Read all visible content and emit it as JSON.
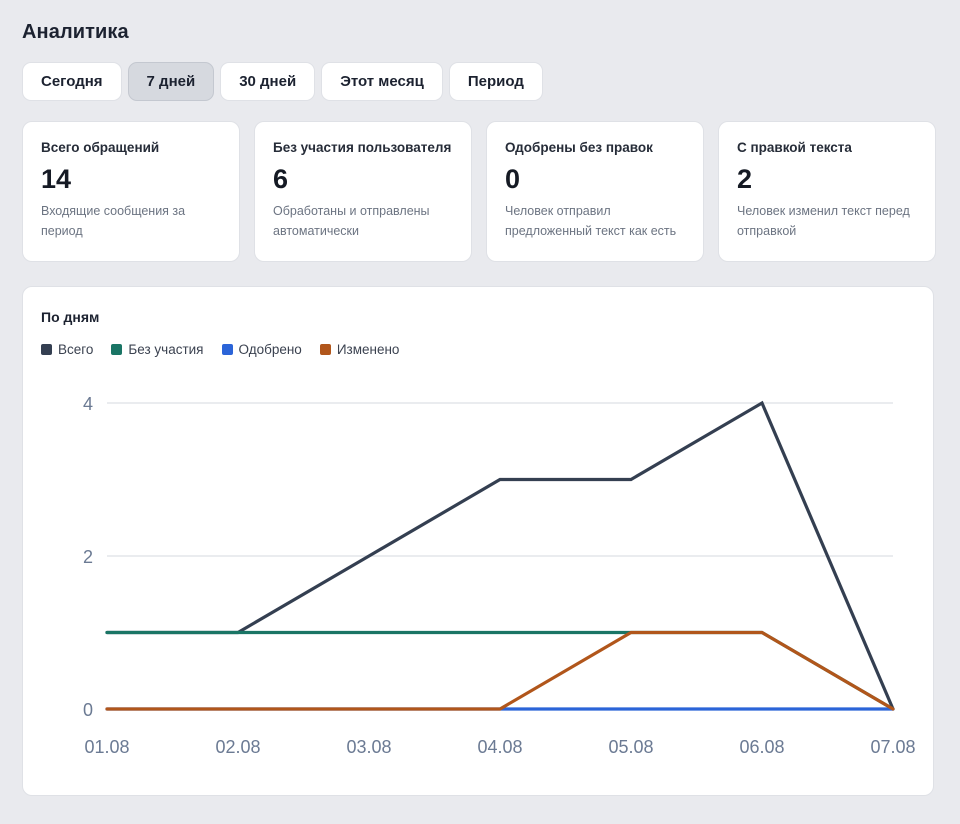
{
  "page": {
    "title": "Аналитика"
  },
  "tabs": [
    {
      "label": "Сегодня",
      "active": false
    },
    {
      "label": "7 дней",
      "active": true
    },
    {
      "label": "30 дней",
      "active": false
    },
    {
      "label": "Этот месяц",
      "active": false
    },
    {
      "label": "Период",
      "active": false
    }
  ],
  "cards": [
    {
      "label": "Всего обращений",
      "value": "14",
      "desc": "Входящие сообщения за период"
    },
    {
      "label": "Без участия пользователя",
      "value": "6",
      "desc": "Обработаны и отправлены автоматически"
    },
    {
      "label": "Одобрены без правок",
      "value": "0",
      "desc": "Человек отправил предложенный текст как есть"
    },
    {
      "label": "С правкой текста",
      "value": "2",
      "desc": "Человек изменил текст перед отправкой"
    }
  ],
  "chart_panel": {
    "title": "По дням"
  },
  "chart_data": {
    "type": "line",
    "categories": [
      "01.08",
      "02.08",
      "03.08",
      "04.08",
      "05.08",
      "06.08",
      "07.08"
    ],
    "ylim": [
      0,
      4
    ],
    "yticks": [
      0,
      2,
      4
    ],
    "grid": true,
    "legend": "top-left",
    "series": [
      {
        "name": "Всего",
        "color": "#343f51",
        "values": [
          1,
          1,
          2,
          3,
          3,
          4,
          0
        ]
      },
      {
        "name": "Без участия",
        "color": "#1a7565",
        "values": [
          1,
          1,
          1,
          1,
          1,
          1,
          0
        ]
      },
      {
        "name": "Одобрено",
        "color": "#2b64d8",
        "values": [
          0,
          0,
          0,
          0,
          0,
          0,
          0
        ]
      },
      {
        "name": "Изменено",
        "color": "#b1561b",
        "values": [
          0,
          0,
          0,
          0,
          1,
          1,
          0
        ]
      }
    ]
  }
}
